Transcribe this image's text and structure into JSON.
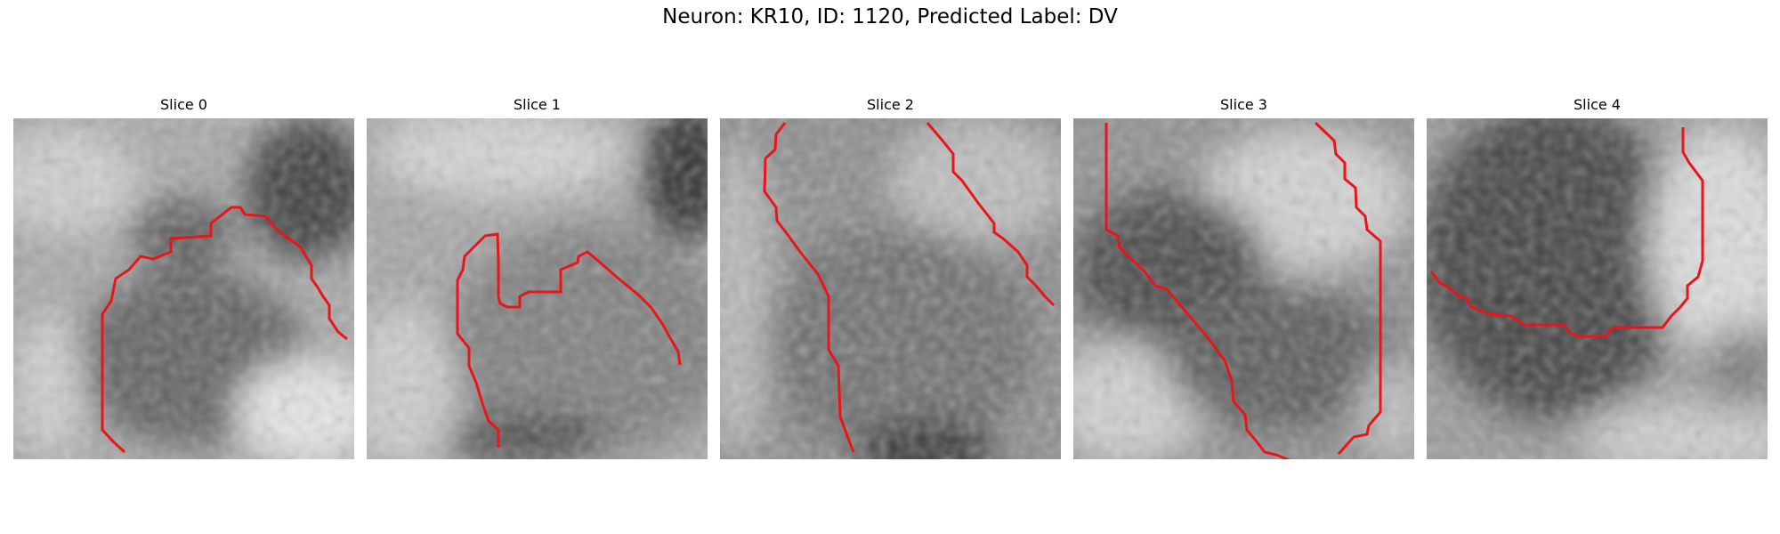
{
  "figure": {
    "title": "Neuron: KR10, ID: 1120, Predicted Label: DV"
  },
  "contour_color": "#e8161b",
  "slices": [
    {
      "label": "Slice 0"
    },
    {
      "label": "Slice 1"
    },
    {
      "label": "Slice 2"
    },
    {
      "label": "Slice 3"
    },
    {
      "label": "Slice 4"
    }
  ]
}
